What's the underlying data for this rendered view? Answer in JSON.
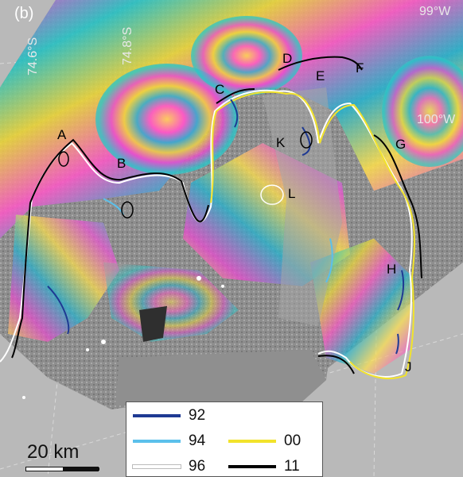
{
  "panel_label": "(b)",
  "graticule": {
    "lat_labels": [
      "74.6°S",
      "74.8°S"
    ],
    "lon_labels": [
      "99°W",
      "100°W"
    ]
  },
  "place_labels": [
    "A",
    "B",
    "C",
    "D",
    "E",
    "F",
    "G",
    "H",
    "J",
    "K",
    "L"
  ],
  "legend": {
    "items": [
      {
        "label": "92",
        "color": "#1f3a93"
      },
      {
        "label": "94",
        "color": "#5bc0eb"
      },
      {
        "label": "96",
        "color": "#ffffff"
      },
      {
        "label": "00",
        "color": "#f2e32b"
      },
      {
        "label": "11",
        "color": "#000000"
      }
    ]
  },
  "scale_bar": {
    "label": "20 km"
  },
  "colors": {
    "background_grey": "#b9b9b9",
    "graticule_white": "#e6e6e6"
  }
}
